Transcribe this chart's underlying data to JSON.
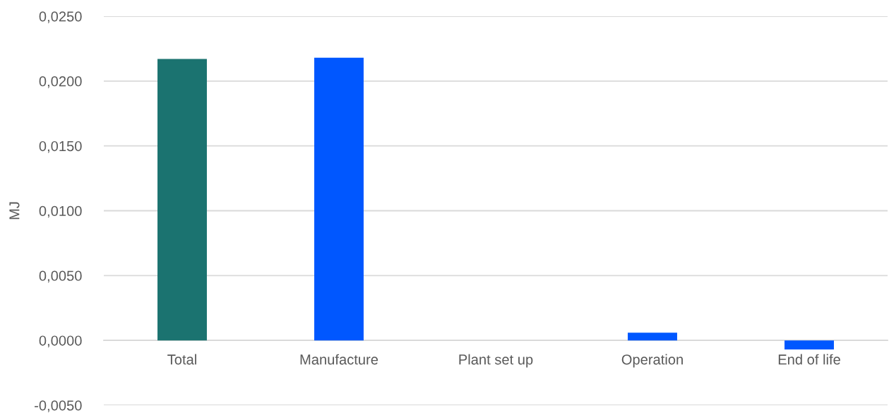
{
  "chart_data": {
    "type": "bar",
    "ylabel": "MJ",
    "categories": [
      "Total",
      "Manufacture",
      "Plant set up",
      "Operation",
      "End of life"
    ],
    "values": [
      0.0217,
      0.0218,
      0,
      0.0006,
      -0.0007
    ],
    "colors": [
      "#1b7370",
      "#0057ff",
      "#0057ff",
      "#0057ff",
      "#0057ff"
    ],
    "ylim": [
      -0.005,
      0.025
    ],
    "yticks": [
      {
        "value": -0.005,
        "label": "-0,0050"
      },
      {
        "value": 0,
        "label": "0,0000"
      },
      {
        "value": 0.005,
        "label": "0,0050"
      },
      {
        "value": 0.01,
        "label": "0,0100"
      },
      {
        "value": 0.015,
        "label": "0,0150"
      },
      {
        "value": 0.02,
        "label": "0,0200"
      },
      {
        "value": 0.025,
        "label": "0,0250"
      }
    ],
    "grid": "y",
    "legend": false
  }
}
